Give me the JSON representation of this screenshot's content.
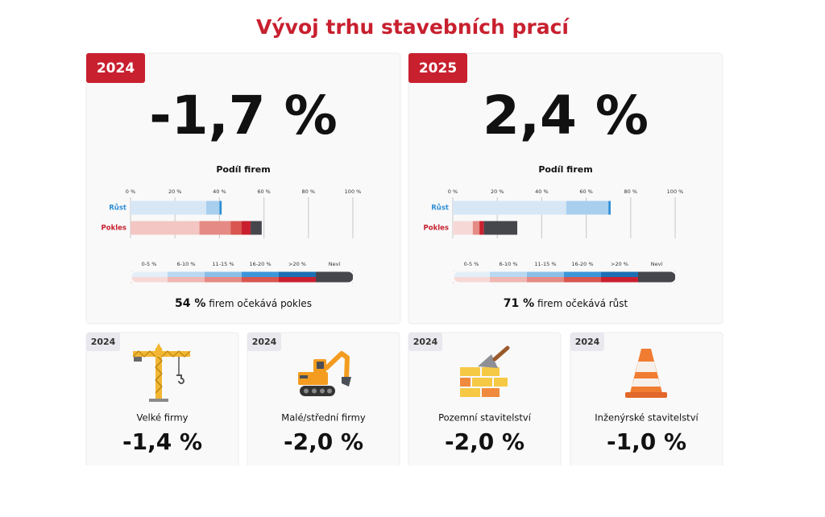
{
  "title": "Vývoj trhu stavebních prací",
  "panels": [
    {
      "year": "2024",
      "headline": "-1,7 %",
      "chart_title": "Podíl firem",
      "xlim": [
        0,
        100
      ],
      "xticks": [
        {
          "value": 0,
          "label": "0 %"
        },
        {
          "value": 20,
          "label": "20 %"
        },
        {
          "value": 40,
          "label": "40 %"
        },
        {
          "value": 60,
          "label": "60 %"
        },
        {
          "value": 80,
          "label": "80 %"
        },
        {
          "value": 100,
          "label": "100 %"
        }
      ],
      "series": [
        {
          "name": "Růst",
          "color": "#2f8fd6",
          "values": [
            34,
            6,
            1
          ],
          "colors": [
            "#d7e7f6",
            "#a9cfee",
            "#2f8fd6"
          ]
        },
        {
          "name": "Pokles",
          "color": "#c8202f",
          "values": [
            31,
            14,
            5,
            4,
            5
          ],
          "colors": [
            "#f3c6c3",
            "#e58a84",
            "#d9554f",
            "#c8202f",
            "#45474d"
          ]
        }
      ],
      "legend": [
        {
          "label": "0-5 %",
          "colors": [
            "#e3eef9",
            "#f6d9d7"
          ]
        },
        {
          "label": "6-10 %",
          "colors": [
            "#b9d8f1",
            "#f0b6b2"
          ]
        },
        {
          "label": "11-15 %",
          "colors": [
            "#8cbfe8",
            "#e58a84"
          ]
        },
        {
          "label": "16-20 %",
          "colors": [
            "#3c96da",
            "#d9554f"
          ]
        },
        {
          "label": ">20 %",
          "colors": [
            "#1d6fb3",
            "#c8202f"
          ]
        },
        {
          "label": "Neví",
          "colors": [
            "#45474d",
            "#45474d"
          ]
        }
      ],
      "summary_value": "54 %",
      "summary_text": "firem očekává pokles"
    },
    {
      "year": "2025",
      "headline": "2,4 %",
      "chart_title": "Podíl firem",
      "xlim": [
        0,
        100
      ],
      "xticks": [
        {
          "value": 0,
          "label": "0 %"
        },
        {
          "value": 20,
          "label": "20 %"
        },
        {
          "value": 40,
          "label": "40 %"
        },
        {
          "value": 60,
          "label": "60 %"
        },
        {
          "value": 80,
          "label": "80 %"
        },
        {
          "value": 100,
          "label": "100 %"
        }
      ],
      "series": [
        {
          "name": "Růst",
          "color": "#2f8fd6",
          "values": [
            51,
            19,
            1
          ],
          "colors": [
            "#d7e7f6",
            "#a9cfee",
            "#2f8fd6"
          ]
        },
        {
          "name": "Pokles",
          "color": "#c8202f",
          "values": [
            9,
            3,
            2,
            15
          ],
          "colors": [
            "#f6d9d7",
            "#e58a84",
            "#c8202f",
            "#45474d"
          ]
        }
      ],
      "legend": [
        {
          "label": "0-5 %",
          "colors": [
            "#e3eef9",
            "#f6d9d7"
          ]
        },
        {
          "label": "6-10 %",
          "colors": [
            "#b9d8f1",
            "#f0b6b2"
          ]
        },
        {
          "label": "11-15 %",
          "colors": [
            "#8cbfe8",
            "#e58a84"
          ]
        },
        {
          "label": "16-20 %",
          "colors": [
            "#3c96da",
            "#d9554f"
          ]
        },
        {
          "label": ">20 %",
          "colors": [
            "#1d6fb3",
            "#c8202f"
          ]
        },
        {
          "label": "Neví",
          "colors": [
            "#45474d",
            "#45474d"
          ]
        }
      ],
      "summary_value": "71 %",
      "summary_text": "firem očekává růst"
    }
  ],
  "cards": [
    {
      "year": "2024",
      "label": "Velké firmy",
      "value": "-1,4 %"
    },
    {
      "year": "2024",
      "label": "Malé/střední firmy",
      "value": "-2,0 %"
    },
    {
      "year": "2024",
      "label": "Pozemní stavitelství",
      "value": "-2,0 %"
    },
    {
      "year": "2024",
      "label": "Inženýrské stavitelství",
      "value": "-1,0 %"
    }
  ]
}
